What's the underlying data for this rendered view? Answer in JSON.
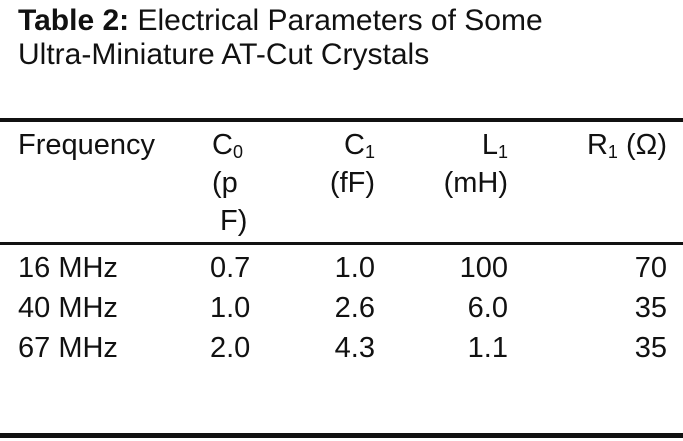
{
  "caption": {
    "label": "Table 2:",
    "line1": "Electrical Parameters of Some",
    "line2": "Ultra-Miniature AT-Cut Crystals"
  },
  "headers": [
    {
      "main": "Frequency",
      "sub": "",
      "unit": []
    },
    {
      "main": "C",
      "sub": "0",
      "unit": [
        "(p",
        "F)"
      ]
    },
    {
      "main": "C",
      "sub": "1",
      "unit": [
        "(fF)"
      ]
    },
    {
      "main": "L",
      "sub": "1",
      "unit": [
        "(mH)"
      ]
    },
    {
      "main": "R",
      "sub": "1",
      "suffix": " (Ω)",
      "unit": []
    }
  ],
  "rows": [
    [
      "16 MHz",
      "0.7",
      "1.0",
      "100",
      "70"
    ],
    [
      "40 MHz",
      "1.0",
      "2.6",
      "6.0",
      "35"
    ],
    [
      "67 MHz",
      "2.0",
      "4.3",
      "1.1",
      "35"
    ]
  ]
}
